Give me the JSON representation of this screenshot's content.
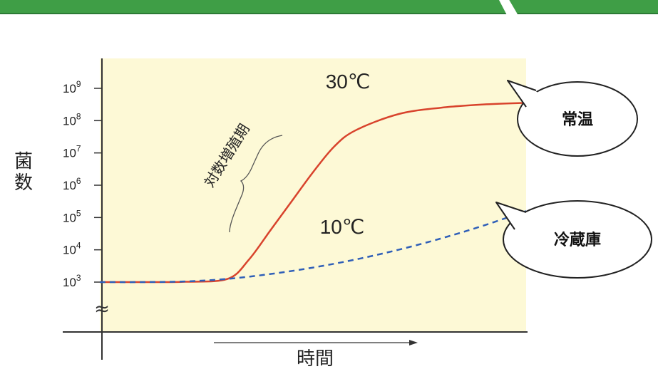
{
  "chart_data": {
    "type": "line",
    "xlabel": "時間",
    "ylabel": "菌数",
    "y_scale": "log",
    "ylim": [
      1000,
      1000000000
    ],
    "y_ticks": [
      {
        "value": 1000,
        "base": "10",
        "exp": "3"
      },
      {
        "value": 10000,
        "base": "10",
        "exp": "4"
      },
      {
        "value": 100000,
        "base": "10",
        "exp": "5"
      },
      {
        "value": 1000000,
        "base": "10",
        "exp": "6"
      },
      {
        "value": 10000000,
        "base": "10",
        "exp": "7"
      },
      {
        "value": 100000000,
        "base": "10",
        "exp": "8"
      },
      {
        "value": 1000000000,
        "base": "10",
        "exp": "9"
      }
    ],
    "axis_break_symbol": "≈",
    "x_axis_arrow": true,
    "series": [
      {
        "name": "30℃",
        "color": "#d8432c",
        "style": "solid",
        "x": [
          0,
          0.1,
          0.2,
          0.3,
          0.35,
          0.4,
          0.45,
          0.5,
          0.55,
          0.6,
          0.7,
          0.8,
          0.9,
          1.0
        ],
        "y_log10": [
          3.0,
          3.0,
          3.01,
          3.1,
          3.7,
          4.6,
          5.5,
          6.4,
          7.2,
          7.7,
          8.2,
          8.4,
          8.5,
          8.55
        ],
        "callout": "常温"
      },
      {
        "name": "10℃",
        "color": "#2f5fb8",
        "style": "dashed",
        "x": [
          0,
          0.1,
          0.2,
          0.3,
          0.4,
          0.5,
          0.6,
          0.7,
          0.8,
          0.9,
          1.0
        ],
        "y_log10": [
          3.0,
          3.0,
          3.02,
          3.1,
          3.25,
          3.45,
          3.7,
          4.0,
          4.35,
          4.75,
          5.2
        ],
        "callout": "冷蔵庫"
      }
    ],
    "annotations": [
      {
        "text": "対数増殖期",
        "target_series": "30℃"
      }
    ],
    "background_color": "#fdf9d6"
  }
}
